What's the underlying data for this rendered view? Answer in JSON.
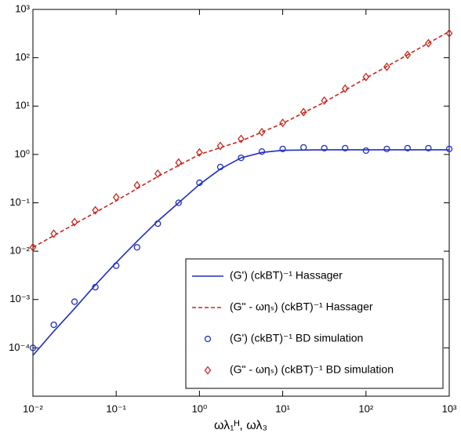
{
  "chart_data": {
    "type": "line",
    "xlabel": "ωλ₁ᴴ, ωλ₃",
    "xscale": "log",
    "yscale": "log",
    "xlim": [
      0.01,
      1000
    ],
    "ylim": [
      1e-05,
      1000
    ],
    "xticks": [
      {
        "value": 0.01,
        "label": "10⁻²"
      },
      {
        "value": 0.1,
        "label": "10⁻¹"
      },
      {
        "value": 1,
        "label": "10⁰"
      },
      {
        "value": 10,
        "label": "10¹"
      },
      {
        "value": 100,
        "label": "10²"
      },
      {
        "value": 1000,
        "label": "10³"
      }
    ],
    "yticks": [
      {
        "value": 0.0001,
        "label": "10⁻⁴"
      },
      {
        "value": 0.001,
        "label": "10⁻³"
      },
      {
        "value": 0.01,
        "label": "10⁻²"
      },
      {
        "value": 0.1,
        "label": "10⁻¹"
      },
      {
        "value": 1,
        "label": "10⁰"
      },
      {
        "value": 10,
        "label": "10¹"
      },
      {
        "value": 100,
        "label": "10²"
      },
      {
        "value": 1000,
        "label": "10³"
      }
    ],
    "legend": "lower right",
    "series": [
      {
        "name": "(G') (ckBT)⁻¹ Hassager",
        "color": "#1f2fbf",
        "style": "solid",
        "x": [
          0.01,
          0.0178,
          0.0316,
          0.0562,
          0.1,
          0.178,
          0.316,
          0.562,
          1,
          1.78,
          3.16,
          5.62,
          10,
          31.6,
          100,
          1000
        ],
        "values": [
          7e-05,
          0.00022,
          0.00065,
          0.002,
          0.0058,
          0.016,
          0.042,
          0.1,
          0.24,
          0.5,
          0.85,
          1.1,
          1.22,
          1.25,
          1.25,
          1.25
        ]
      },
      {
        "name": "(G\" - ωηₛ) (ckBT)⁻¹ Hassager",
        "color": "#c8281e",
        "style": "dashed",
        "x": [
          0.01,
          0.1,
          0.316,
          1,
          3.16,
          10,
          31.6,
          100,
          316,
          1000
        ],
        "values": [
          0.012,
          0.11,
          0.35,
          1.0,
          1.9,
          4.4,
          12,
          38,
          115,
          350
        ]
      },
      {
        "name": "(G') (ckBT)⁻¹ BD simulation",
        "color": "#1f2fbf",
        "style": "circle",
        "x": [
          0.01,
          0.0178,
          0.0316,
          0.0562,
          0.1,
          0.178,
          0.316,
          0.562,
          1,
          1.78,
          3.16,
          5.62,
          10,
          17.8,
          31.6,
          56.2,
          100,
          178,
          316,
          562,
          1000
        ],
        "values": [
          0.0001,
          0.0003,
          0.0009,
          0.0018,
          0.005,
          0.012,
          0.037,
          0.1,
          0.26,
          0.55,
          0.85,
          1.15,
          1.3,
          1.4,
          1.35,
          1.35,
          1.2,
          1.3,
          1.35,
          1.35,
          1.3
        ]
      },
      {
        "name": "(G\" - ωηₛ) (ckBT)⁻¹ BD simulation",
        "color": "#c8281e",
        "style": "diamond",
        "x": [
          0.01,
          0.0178,
          0.0316,
          0.0562,
          0.1,
          0.178,
          0.316,
          0.562,
          1,
          1.78,
          3.16,
          5.62,
          10,
          17.8,
          31.6,
          56.2,
          100,
          178,
          316,
          562,
          1000
        ],
        "values": [
          0.012,
          0.023,
          0.04,
          0.07,
          0.13,
          0.23,
          0.4,
          0.68,
          1.1,
          1.5,
          2.1,
          2.9,
          4.5,
          7.5,
          13,
          23,
          40,
          65,
          115,
          200,
          320
        ]
      }
    ]
  }
}
